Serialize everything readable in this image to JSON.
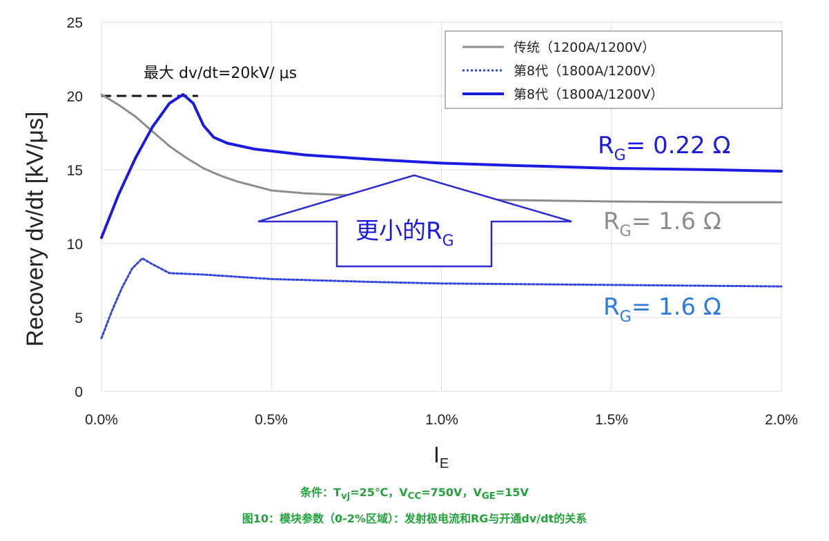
{
  "chart_data": {
    "type": "line",
    "ylabel": "Recovery dv/dt [kV/μs]",
    "xlabel_main": "I",
    "xlabel_sub": "E",
    "xlim": [
      0,
      2.0
    ],
    "ylim": [
      0,
      25
    ],
    "x_ticks": [
      "0.0%",
      "0.5%",
      "1.0%",
      "1.5%",
      "2.0%"
    ],
    "y_ticks": [
      "0",
      "5",
      "10",
      "15",
      "20",
      "25"
    ],
    "grid": true,
    "legend_position": "top-right",
    "series": [
      {
        "name": "传统（1200A/1200V）",
        "style": "solid",
        "color": "#8c8c8c",
        "x": [
          0.0,
          0.05,
          0.1,
          0.15,
          0.2,
          0.25,
          0.3,
          0.35,
          0.4,
          0.45,
          0.5,
          0.6,
          0.7,
          0.8,
          1.0,
          1.2,
          1.5,
          1.8,
          2.0
        ],
        "y": [
          20.1,
          19.4,
          18.6,
          17.6,
          16.6,
          15.8,
          15.1,
          14.6,
          14.2,
          13.9,
          13.6,
          13.4,
          13.3,
          13.2,
          13.05,
          12.95,
          12.85,
          12.8,
          12.8
        ]
      },
      {
        "name": "第8代（1800A/1200V）",
        "style": "dotted",
        "color": "#3344dd",
        "x": [
          0.0,
          0.03,
          0.06,
          0.09,
          0.12,
          0.15,
          0.2,
          0.3,
          0.5,
          0.8,
          1.0,
          1.5,
          2.0
        ],
        "y": [
          3.6,
          5.4,
          7.0,
          8.3,
          9.0,
          8.6,
          8.0,
          7.9,
          7.6,
          7.4,
          7.3,
          7.2,
          7.1
        ],
        "annotation": "R_G= 1.6 Ω"
      },
      {
        "name": "第8代（1800A/1200V）",
        "style": "solid",
        "color": "#1a1ae0",
        "x": [
          0.0,
          0.05,
          0.1,
          0.15,
          0.2,
          0.24,
          0.27,
          0.3,
          0.33,
          0.37,
          0.45,
          0.6,
          0.8,
          1.0,
          1.2,
          1.5,
          1.8,
          2.0
        ],
        "y": [
          10.4,
          13.3,
          15.8,
          17.9,
          19.5,
          20.1,
          19.5,
          18.0,
          17.2,
          16.8,
          16.4,
          16.0,
          15.7,
          15.45,
          15.3,
          15.1,
          15.0,
          14.9
        ],
        "annotation": "R_G= 0.22 Ω"
      }
    ],
    "annotations": {
      "max_label": "最大 dv/dt=20kV/ μs",
      "max_value": 20,
      "arrow_label": "更小的R",
      "arrow_label_sub": "G",
      "rg022_main": "R",
      "rg022_sub": "G",
      "rg022_rest": "= 0.22 Ω",
      "rg16_gray_main": "R",
      "rg16_gray_sub": "G",
      "rg16_gray_rest": "= 1.6 Ω",
      "rg16_blue_main": "R",
      "rg16_blue_sub": "G",
      "rg16_blue_rest": "= 1.6 Ω"
    }
  },
  "captions": {
    "conditions": "条件：T",
    "conditions_vj": "vj",
    "conditions_mid1": "=25℃，V",
    "conditions_cc": "CC",
    "conditions_mid2": "=750V，V",
    "conditions_ge": "GE",
    "conditions_end": "=15V",
    "figure_title": "图10：模块参数（0-2%区域）：发射极电流和RG与开通dv/dt的关系"
  },
  "colors": {
    "gray_line": "#8c8c8c",
    "blue_dotted": "#3344dd",
    "blue_solid": "#1a1ae0",
    "rg16_blue_text": "#2b7be0",
    "gray_text": "#8c8c8c",
    "caption_green": "#22a33a",
    "grid": "#dddddd"
  }
}
